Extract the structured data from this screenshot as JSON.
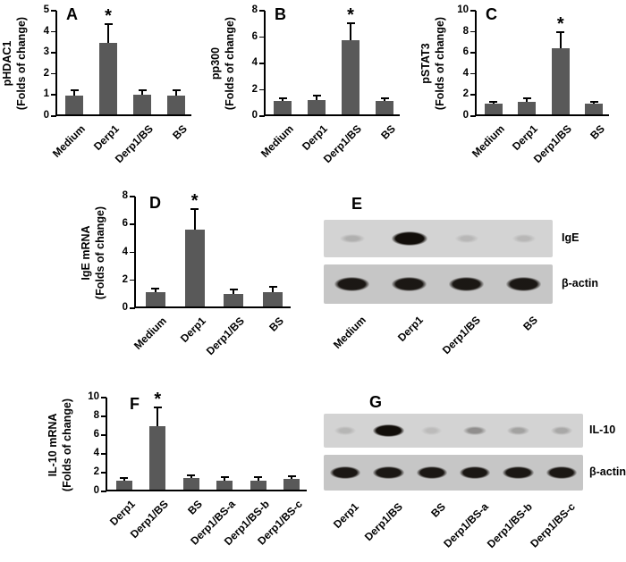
{
  "figure": {
    "background": "#ffffff",
    "bar_color": "#595959",
    "axis_color": "#000000",
    "band_color_rgb": "18,14,10",
    "blot_row_backgrounds": [
      "#d3d3d3",
      "#c6c6c6"
    ],
    "significance_marker": "*"
  },
  "chart_data": [
    {
      "type": "bar",
      "panel_label": "A",
      "title": "",
      "ylabel_line1": "pHDAC1",
      "ylabel_line2": "(Folds of change)",
      "ylabel": "pHDAC1 (Folds of change)",
      "xlabel": "",
      "categories": [
        "Medium",
        "Derp1",
        "Derp1/BS",
        "BS"
      ],
      "values": [
        0.9,
        3.4,
        0.95,
        0.9
      ],
      "errors": [
        0.25,
        0.9,
        0.2,
        0.25
      ],
      "significant": [
        false,
        true,
        false,
        false
      ],
      "ylim": [
        0,
        5
      ],
      "yticks": [
        0,
        1,
        2,
        3,
        4,
        5
      ],
      "grid": false
    },
    {
      "type": "bar",
      "panel_label": "B",
      "title": "",
      "ylabel_line1": "pp300",
      "ylabel_line2": "(Folds of change)",
      "ylabel": "pp300 (Folds of change)",
      "xlabel": "",
      "categories": [
        "Medium",
        "Derp1",
        "Derp1/BS",
        "BS"
      ],
      "values": [
        1.0,
        1.1,
        5.6,
        1.0
      ],
      "errors": [
        0.2,
        0.3,
        1.3,
        0.2
      ],
      "significant": [
        false,
        false,
        true,
        false
      ],
      "ylim": [
        0,
        8
      ],
      "yticks": [
        0,
        2,
        4,
        6,
        8
      ],
      "grid": false
    },
    {
      "type": "bar",
      "panel_label": "C",
      "title": "",
      "ylabel_line1": "pSTAT3",
      "ylabel_line2": "(Folds of change)",
      "ylabel": "pSTAT3 (Folds of change)",
      "xlabel": "",
      "categories": [
        "Medium",
        "Derp1",
        "Derp1/BS",
        "BS"
      ],
      "values": [
        1.0,
        1.2,
        6.3,
        1.0
      ],
      "errors": [
        0.2,
        0.3,
        1.5,
        0.2
      ],
      "significant": [
        false,
        false,
        true,
        false
      ],
      "ylim": [
        0,
        10
      ],
      "yticks": [
        0,
        2,
        4,
        6,
        8,
        10
      ],
      "grid": false
    },
    {
      "type": "bar",
      "panel_label": "D",
      "title": "",
      "ylabel_line1": "IgE mRNA",
      "ylabel_line2": "(Folds of change)",
      "ylabel": "IgE mRNA (Folds of change)",
      "xlabel": "",
      "categories": [
        "Medium",
        "Derp1",
        "Derp1/BS",
        "BS"
      ],
      "values": [
        1.0,
        5.5,
        0.9,
        1.0
      ],
      "errors": [
        0.3,
        1.5,
        0.3,
        0.4
      ],
      "significant": [
        false,
        true,
        false,
        false
      ],
      "ylim": [
        0,
        8
      ],
      "yticks": [
        0,
        2,
        4,
        6,
        8
      ],
      "grid": false
    },
    {
      "type": "bar",
      "panel_label": "F",
      "title": "",
      "ylabel_line1": "IL-10 mRNA",
      "ylabel_line2": "(Folds of change)",
      "ylabel": "IL-10 mRNA (Folds of change)",
      "xlabel": "",
      "categories": [
        "Derp1",
        "Derp1/BS",
        "BS",
        "Derp1/BS-a",
        "Derp1/BS-b",
        "Derp1/BS-c"
      ],
      "values": [
        1.0,
        6.8,
        1.2,
        1.0,
        1.0,
        1.1
      ],
      "errors": [
        0.2,
        2.0,
        0.3,
        0.3,
        0.3,
        0.3
      ],
      "significant": [
        false,
        true,
        false,
        false,
        false,
        false
      ],
      "ylim": [
        0,
        10
      ],
      "yticks": [
        0,
        2,
        4,
        6,
        8,
        10
      ],
      "grid": false
    }
  ],
  "blots": [
    {
      "panel_label": "E",
      "lanes": [
        "Medium",
        "Derp1",
        "Derp1/BS",
        "BS"
      ],
      "rows": [
        {
          "label": "IgE",
          "band_intensities": [
            0.18,
            1.0,
            0.14,
            0.14
          ]
        },
        {
          "label": "β-actin",
          "band_intensities": [
            0.95,
            0.95,
            0.95,
            0.95
          ]
        }
      ]
    },
    {
      "panel_label": "G",
      "lanes": [
        "Derp1",
        "Derp1/BS",
        "BS",
        "Derp1/BS-a",
        "Derp1/BS-b",
        "Derp1/BS-c"
      ],
      "rows": [
        {
          "label": "IL-10",
          "band_intensities": [
            0.15,
            1.0,
            0.12,
            0.35,
            0.25,
            0.22
          ]
        },
        {
          "label": "β-actin",
          "band_intensities": [
            0.95,
            0.95,
            0.95,
            0.95,
            0.95,
            0.95
          ]
        }
      ]
    }
  ]
}
